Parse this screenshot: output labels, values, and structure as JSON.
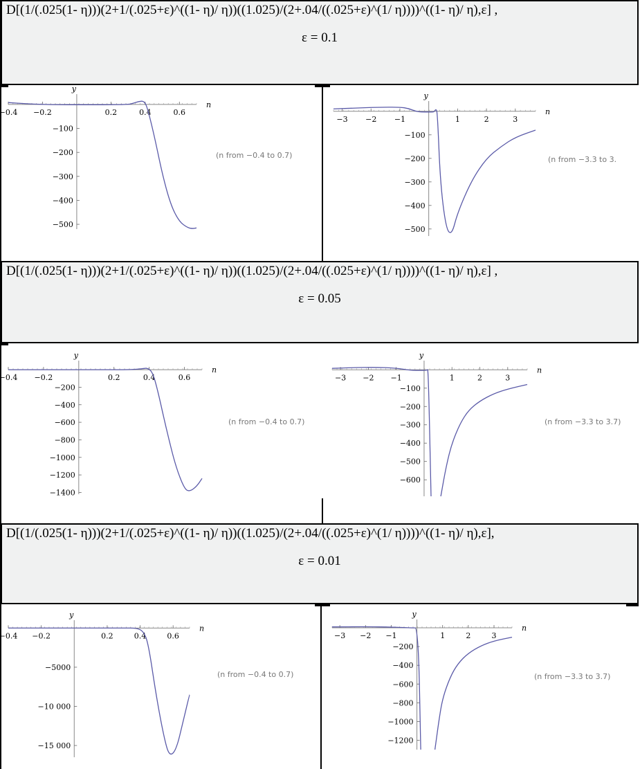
{
  "panels": [
    {
      "formula": "D[(1/(.025(1- η)))(2+1/(.025+ε)^((1- η)/ η))((1.025)/(2+.04/((.025+ε)^(1/ η))))^((1- η)/ η),ε] ,",
      "epsilon": "ε = 0.1",
      "charts": [
        {
          "id": "c1",
          "range": "(n from −0.4 to 0.7)",
          "xlabel": "n",
          "ylabel": "y",
          "xticks": [
            "−0.4",
            "−0.2",
            "0.2",
            "0.4",
            "0.6"
          ],
          "yticks": [
            "−100",
            "−200",
            "−300",
            "−400",
            "−500"
          ]
        },
        {
          "id": "c2",
          "range": "(n from −3.3 to 3.",
          "xlabel": "n",
          "ylabel": "y",
          "xticks": [
            "−3",
            "−2",
            "−1",
            "1",
            "2",
            "3"
          ],
          "yticks": [
            "−100",
            "−200",
            "−300",
            "−400",
            "−500"
          ]
        }
      ]
    },
    {
      "formula": "D[(1/(.025(1- η)))(2+1/(.025+ε)^((1- η)/ η))((1.025)/(2+.04/((.025+ε)^(1/ η))))^((1- η)/ η),ε] ,",
      "epsilon": "ε = 0.05",
      "charts": [
        {
          "id": "c3",
          "range": "(n from −0.4 to 0.7)",
          "xlabel": "n",
          "ylabel": "y",
          "xticks": [
            "−0.4",
            "−0.2",
            "0.2",
            "0.4",
            "0.6"
          ],
          "yticks": [
            "−200",
            "−400",
            "−600",
            "−800",
            "−1000",
            "−1200",
            "−1400"
          ]
        },
        {
          "id": "c4",
          "range": "(n from −3.3 to 3.7)",
          "xlabel": "n",
          "ylabel": "y",
          "xticks": [
            "−3",
            "−2",
            "−1",
            "1",
            "2",
            "3"
          ],
          "yticks": [
            "−100",
            "−200",
            "−300",
            "−400",
            "−500",
            "−600"
          ]
        }
      ]
    },
    {
      "formula": "D[(1/(.025(1- η)))(2+1/(.025+ε)^((1- η)/ η))((1.025)/(2+.04/((.025+ε)^(1/ η))))^((1- η)/ η),ε],",
      "epsilon": "ε = 0.01",
      "charts": [
        {
          "id": "c5",
          "range": "(n from −0.4 to 0.7)",
          "xlabel": "n",
          "ylabel": "y",
          "xticks": [
            "−0.4",
            "−0.2",
            "0.2",
            "0.4",
            "0.6"
          ],
          "yticks": [
            "−5000",
            "−10 000",
            "−15 000"
          ]
        },
        {
          "id": "c6",
          "range": "(n from −3.3 to 3.7)",
          "xlabel": "n",
          "ylabel": "y",
          "xticks": [
            "−3",
            "−2",
            "−1",
            "1",
            "2",
            "3"
          ],
          "yticks": [
            "−200",
            "−400",
            "−600",
            "−800",
            "−1000",
            "−1200"
          ]
        }
      ]
    }
  ],
  "colors": {
    "curve": "#5a5aa8",
    "band": "#f0f1f1"
  },
  "chart_data": [
    {
      "type": "line",
      "xlim": [
        -0.4,
        0.7
      ],
      "ylim": [
        -520,
        20
      ],
      "series": [
        {
          "x": [
            -0.4,
            -0.3,
            -0.2,
            -0.1,
            0,
            0.1,
            0.2,
            0.3,
            0.33,
            0.36,
            0.39,
            0.41,
            0.45,
            0.5,
            0.55,
            0.6,
            0.65,
            0.68,
            0.7
          ],
          "y": [
            8,
            3,
            0,
            -1,
            -1,
            -1,
            -1,
            0,
            5,
            12,
            15,
            -5,
            -120,
            -290,
            -420,
            -490,
            -515,
            -518,
            -515
          ]
        }
      ]
    },
    {
      "type": "line",
      "xlim": [
        -3.3,
        3.7
      ],
      "ylim": [
        -530,
        20
      ],
      "series": [
        {
          "x": [
            -3.3,
            -2.5,
            -1.8,
            -1.0,
            -0.7,
            -0.4,
            -0.1,
            0.1,
            0.2,
            0.25,
            0.3,
            0.4,
            0.6,
            0.8,
            1.0,
            1.5,
            2.0,
            2.5,
            3.0,
            3.7
          ],
          "y": [
            10,
            14,
            17,
            18,
            12,
            -2,
            -3,
            -3,
            -2,
            10,
            -5,
            -300,
            -500,
            -525,
            -430,
            -290,
            -200,
            -150,
            -110,
            -80
          ]
        }
      ]
    },
    {
      "type": "line",
      "xlim": [
        -0.4,
        0.7
      ],
      "ylim": [
        -1420,
        40
      ],
      "series": [
        {
          "x": [
            -0.4,
            -0.3,
            -0.2,
            -0.1,
            0,
            0.1,
            0.2,
            0.3,
            0.36,
            0.39,
            0.42,
            0.45,
            0.5,
            0.55,
            0.6,
            0.63,
            0.67,
            0.7
          ],
          "y": [
            0,
            0,
            0,
            0,
            0,
            0,
            0,
            0,
            10,
            20,
            -30,
            -250,
            -700,
            -1100,
            -1360,
            -1390,
            -1330,
            -1240
          ]
        }
      ]
    },
    {
      "type": "line",
      "xlim": [
        -3.3,
        3.7
      ],
      "ylim": [
        -690,
        20
      ],
      "series": [
        {
          "x": [
            -3.3,
            -2.5,
            -1.8,
            -1.0,
            -0.5,
            -0.1,
            0.1,
            0.15,
            0.25
          ],
          "y": [
            8,
            12,
            14,
            10,
            -3,
            -3,
            -3,
            5,
            -690
          ]
        },
        {
          "x": [
            0.6,
            0.8,
            1.0,
            1.3,
            1.6,
            2.0,
            2.5,
            3.0,
            3.7
          ],
          "y": [
            -690,
            -520,
            -400,
            -290,
            -220,
            -170,
            -130,
            -105,
            -80
          ]
        }
      ]
    },
    {
      "type": "line",
      "xlim": [
        -0.4,
        0.7
      ],
      "ylim": [
        -16500,
        300
      ],
      "series": [
        {
          "x": [
            -0.4,
            -0.2,
            0,
            0.2,
            0.3,
            0.38,
            0.42,
            0.45,
            0.5,
            0.55,
            0.58,
            0.62,
            0.66,
            0.7
          ],
          "y": [
            0,
            0,
            0,
            0,
            0,
            0,
            -400,
            -2000,
            -9000,
            -14500,
            -16400,
            -15500,
            -12000,
            -8500
          ]
        }
      ]
    },
    {
      "type": "line",
      "xlim": [
        -3.3,
        3.7
      ],
      "ylim": [
        -1300,
        30
      ],
      "series": [
        {
          "x": [
            -3.3,
            -2,
            -1,
            -0.2,
            0.05,
            0.15
          ],
          "y": [
            10,
            12,
            8,
            0,
            0,
            -1300
          ]
        },
        {
          "x": [
            0.7,
            0.85,
            1.0,
            1.3,
            1.6,
            2.0,
            2.5,
            3.0,
            3.7
          ],
          "y": [
            -1300,
            -1000,
            -750,
            -520,
            -380,
            -270,
            -190,
            -140,
            -100
          ]
        }
      ]
    }
  ]
}
